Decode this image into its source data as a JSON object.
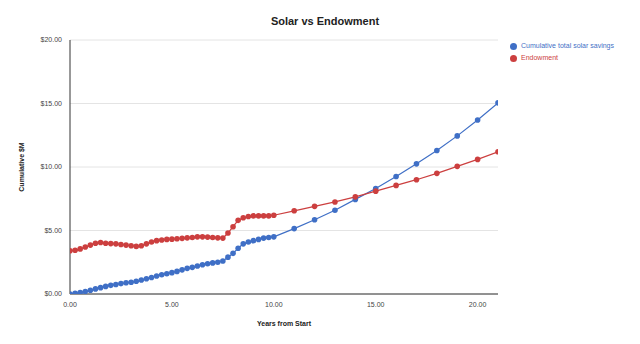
{
  "chart_data": {
    "type": "line",
    "title": "Solar vs Endowment",
    "x_label": "Years from Start",
    "y_label": "Cumulative $M",
    "x": [
      0,
      0.25,
      0.5,
      0.75,
      1,
      1.25,
      1.5,
      1.75,
      2,
      2.25,
      2.5,
      2.75,
      3,
      3.25,
      3.5,
      3.75,
      4,
      4.25,
      4.5,
      4.75,
      5,
      5.25,
      5.5,
      5.75,
      6,
      6.25,
      6.5,
      6.75,
      7,
      7.25,
      7.5,
      7.75,
      8,
      8.25,
      8.5,
      8.75,
      9,
      9.25,
      9.5,
      9.75,
      10,
      11,
      12,
      13,
      14,
      15,
      16,
      17,
      18,
      19,
      20,
      21
    ],
    "series": [
      {
        "name": "Cumulative total solar savings",
        "color": "#3f6fc6",
        "values": [
          0.0,
          0.05,
          0.12,
          0.2,
          0.3,
          0.4,
          0.5,
          0.6,
          0.68,
          0.75,
          0.82,
          0.88,
          0.93,
          1.0,
          1.1,
          1.2,
          1.3,
          1.42,
          1.52,
          1.6,
          1.68,
          1.78,
          1.9,
          2.02,
          2.1,
          2.2,
          2.3,
          2.38,
          2.45,
          2.5,
          2.6,
          2.9,
          3.2,
          3.6,
          3.95,
          4.1,
          4.2,
          4.3,
          4.4,
          4.45,
          4.5,
          5.15,
          5.85,
          6.6,
          7.45,
          8.3,
          9.25,
          10.25,
          11.3,
          12.45,
          13.7,
          15.05
        ]
      },
      {
        "name": "Endowment",
        "color": "#cc3f3f",
        "values": [
          3.4,
          3.45,
          3.55,
          3.7,
          3.85,
          4.0,
          4.05,
          4.0,
          3.97,
          3.95,
          3.9,
          3.85,
          3.8,
          3.75,
          3.8,
          3.95,
          4.1,
          4.2,
          4.25,
          4.3,
          4.32,
          4.35,
          4.38,
          4.42,
          4.45,
          4.5,
          4.5,
          4.48,
          4.45,
          4.42,
          4.4,
          4.8,
          5.3,
          5.8,
          6.0,
          6.1,
          6.15,
          6.15,
          6.15,
          6.15,
          6.2,
          6.55,
          6.9,
          7.25,
          7.65,
          8.1,
          8.55,
          9.0,
          9.5,
          10.05,
          10.6,
          11.2
        ]
      }
    ],
    "xlim": [
      0,
      21
    ],
    "ylim": [
      0,
      20
    ],
    "xticks": [
      {
        "value": 0,
        "label": "0.00"
      },
      {
        "value": 5,
        "label": "5.00"
      },
      {
        "value": 10,
        "label": "10.00"
      },
      {
        "value": 15,
        "label": "15.00"
      },
      {
        "value": 20,
        "label": "20.00"
      }
    ],
    "yticks": [
      {
        "value": 0,
        "label": "$0.00"
      },
      {
        "value": 5,
        "label": "$5.00"
      },
      {
        "value": 10,
        "label": "$10.00"
      },
      {
        "value": 15,
        "label": "$15.00"
      },
      {
        "value": 20,
        "label": "$20.00"
      }
    ],
    "grid": true,
    "legend": "top right",
    "marker": "circle",
    "line_style": "solid"
  }
}
